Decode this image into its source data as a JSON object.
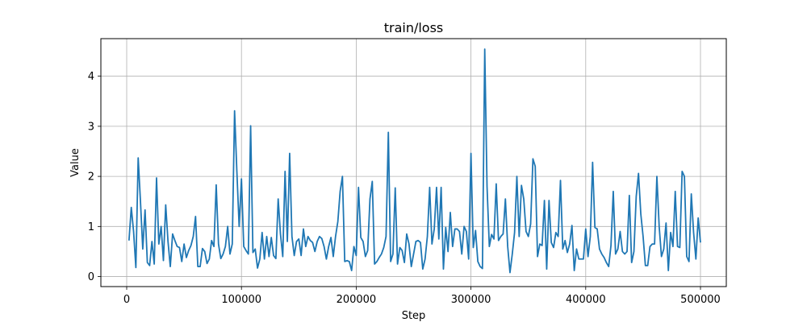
{
  "chart_data": {
    "type": "line",
    "title": "train/loss",
    "xlabel": "Step",
    "ylabel": "Value",
    "xlim": [
      -22500,
      522500
    ],
    "ylim": [
      -0.2,
      4.75
    ],
    "grid": true,
    "legend": "none",
    "x_ticks": [
      0,
      100000,
      200000,
      300000,
      400000,
      500000
    ],
    "x_tick_labels": [
      "0",
      "100000",
      "200000",
      "300000",
      "400000",
      "500000"
    ],
    "y_ticks": [
      0,
      1,
      2,
      3,
      4
    ],
    "y_tick_labels": [
      "0",
      "1",
      "2",
      "3",
      "4"
    ],
    "series": [
      {
        "color": "#1f77b4",
        "x": [
          2000,
          4000,
          6000,
          8000,
          10000,
          12000,
          14000,
          16000,
          18000,
          20000,
          22000,
          24000,
          26000,
          28000,
          30000,
          32000,
          34000,
          36000,
          38000,
          40000,
          42000,
          44000,
          46000,
          48000,
          50000,
          52000,
          54000,
          56000,
          58000,
          60000,
          62000,
          64000,
          66000,
          68000,
          70000,
          72000,
          74000,
          76000,
          78000,
          80000,
          82000,
          84000,
          86000,
          88000,
          90000,
          92000,
          94000,
          96000,
          98000,
          100000,
          102000,
          104000,
          106000,
          108000,
          110000,
          112000,
          114000,
          116000,
          118000,
          120000,
          122000,
          124000,
          126000,
          128000,
          130000,
          132000,
          134000,
          136000,
          138000,
          140000,
          142000,
          144000,
          146000,
          148000,
          150000,
          152000,
          154000,
          156000,
          158000,
          160000,
          162000,
          164000,
          166000,
          168000,
          170000,
          172000,
          174000,
          176000,
          178000,
          180000,
          182000,
          184000,
          186000,
          188000,
          190000,
          192000,
          194000,
          196000,
          198000,
          200000,
          202000,
          204000,
          206000,
          208000,
          210000,
          212000,
          214000,
          216000,
          218000,
          220000,
          222000,
          224000,
          226000,
          228000,
          230000,
          232000,
          234000,
          236000,
          238000,
          240000,
          242000,
          244000,
          246000,
          248000,
          250000,
          252000,
          254000,
          256000,
          258000,
          260000,
          262000,
          264000,
          266000,
          268000,
          270000,
          272000,
          274000,
          276000,
          278000,
          280000,
          282000,
          284000,
          286000,
          288000,
          290000,
          292000,
          294000,
          296000,
          298000,
          300000,
          302000,
          304000,
          306000,
          308000,
          310000,
          312000,
          314000,
          316000,
          318000,
          320000,
          322000,
          324000,
          326000,
          328000,
          330000,
          332000,
          334000,
          336000,
          338000,
          340000,
          342000,
          344000,
          346000,
          348000,
          350000,
          352000,
          354000,
          356000,
          358000,
          360000,
          362000,
          364000,
          366000,
          368000,
          370000,
          372000,
          374000,
          376000,
          378000,
          380000,
          382000,
          384000,
          386000,
          388000,
          390000,
          392000,
          394000,
          396000,
          398000,
          400000,
          402000,
          404000,
          406000,
          408000,
          410000,
          412000,
          414000,
          416000,
          418000,
          420000,
          422000,
          424000,
          426000,
          428000,
          430000,
          432000,
          434000,
          436000,
          438000,
          440000,
          442000,
          444000,
          446000,
          448000,
          450000,
          452000,
          454000,
          456000,
          458000,
          460000,
          462000,
          464000,
          466000,
          468000,
          470000,
          472000,
          474000,
          476000,
          478000,
          480000,
          482000,
          484000,
          486000,
          488000,
          490000,
          492000,
          494000,
          496000,
          498000,
          500000
        ],
        "values": [
          0.72,
          1.38,
          0.9,
          0.18,
          2.37,
          1.5,
          0.55,
          1.33,
          0.28,
          0.22,
          0.7,
          0.25,
          1.97,
          0.65,
          1.0,
          0.32,
          1.43,
          0.7,
          0.2,
          0.85,
          0.72,
          0.6,
          0.58,
          0.3,
          0.65,
          0.38,
          0.52,
          0.62,
          0.8,
          1.2,
          0.2,
          0.2,
          0.56,
          0.5,
          0.26,
          0.35,
          0.72,
          0.6,
          1.83,
          0.65,
          0.36,
          0.45,
          0.6,
          1.0,
          0.45,
          0.65,
          3.31,
          2.1,
          1.0,
          1.95,
          0.6,
          0.52,
          0.45,
          3.01,
          0.48,
          0.55,
          0.17,
          0.35,
          0.88,
          0.35,
          0.8,
          0.4,
          0.78,
          0.42,
          0.36,
          1.55,
          0.85,
          0.4,
          2.1,
          0.7,
          2.46,
          0.8,
          0.42,
          0.7,
          0.75,
          0.42,
          0.95,
          0.6,
          0.8,
          0.72,
          0.68,
          0.5,
          0.7,
          0.8,
          0.76,
          0.6,
          0.35,
          0.6,
          0.78,
          0.4,
          0.8,
          1.1,
          1.7,
          2.0,
          0.3,
          0.32,
          0.3,
          0.12,
          0.6,
          0.42,
          1.78,
          0.78,
          0.7,
          0.4,
          0.52,
          1.55,
          1.9,
          0.25,
          0.3,
          0.38,
          0.45,
          0.58,
          0.8,
          2.88,
          0.3,
          0.45,
          1.77,
          0.25,
          0.58,
          0.52,
          0.28,
          0.85,
          0.65,
          0.2,
          0.45,
          0.7,
          0.72,
          0.68,
          0.15,
          0.35,
          0.8,
          1.78,
          0.65,
          0.95,
          1.78,
          0.75,
          1.78,
          0.15,
          0.98,
          0.5,
          1.28,
          0.6,
          0.95,
          0.95,
          0.9,
          0.45,
          1.0,
          0.9,
          0.35,
          2.46,
          0.58,
          0.92,
          0.3,
          0.2,
          0.16,
          4.54,
          1.8,
          0.6,
          0.84,
          0.75,
          1.85,
          0.72,
          0.8,
          0.85,
          1.55,
          0.6,
          0.08,
          0.45,
          0.88,
          2.0,
          0.8,
          1.82,
          1.55,
          0.9,
          0.8,
          1.05,
          2.35,
          2.2,
          0.4,
          0.65,
          0.62,
          1.52,
          0.15,
          1.52,
          0.68,
          0.58,
          0.88,
          0.8,
          1.92,
          0.55,
          0.72,
          0.48,
          0.65,
          1.02,
          0.12,
          0.55,
          0.35,
          0.35,
          0.35,
          0.95,
          0.4,
          0.8,
          2.28,
          0.98,
          0.95,
          0.55,
          0.45,
          0.38,
          0.28,
          0.2,
          0.62,
          1.7,
          0.45,
          0.55,
          0.9,
          0.5,
          0.45,
          0.5,
          1.62,
          0.28,
          0.5,
          1.6,
          2.06,
          1.25,
          0.8,
          0.22,
          0.22,
          0.6,
          0.65,
          0.65,
          2.0,
          1.0,
          0.4,
          0.55,
          1.07,
          0.12,
          0.88,
          0.6,
          1.7,
          0.6,
          0.58,
          2.1,
          2.0,
          0.4,
          0.3,
          1.65,
          0.88,
          0.35,
          1.17,
          0.68
        ]
      }
    ]
  }
}
